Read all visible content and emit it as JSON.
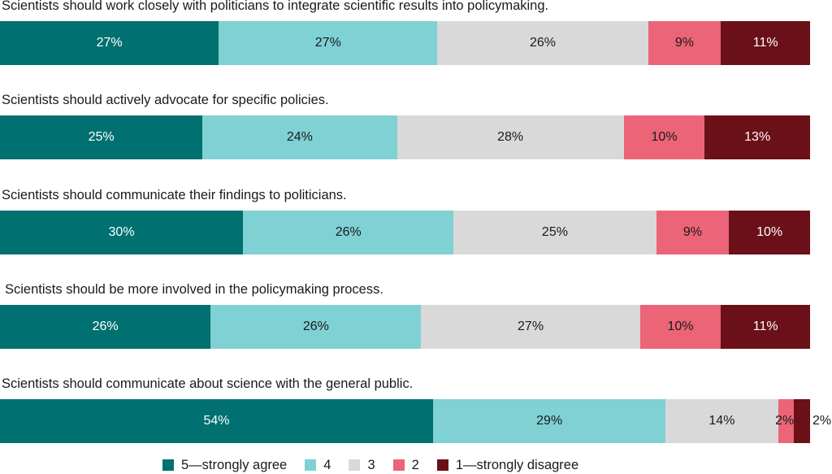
{
  "chart_data": {
    "type": "bar",
    "orientation": "horizontal",
    "stacked": true,
    "categories": [
      "Scientists should work closely with politicians to integrate scientific results into policymaking.",
      "Scientists should actively advocate for specific policies.",
      "Scientists should communicate their findings to politicians.",
      "Scientists should be more involved in the policymaking process.",
      "Scientists should communicate about science with the general public."
    ],
    "series": [
      {
        "name": "5—strongly agree",
        "color": "#007070",
        "text_color": "#ffffff",
        "values": [
          27,
          25,
          30,
          26,
          54
        ],
        "labels": [
          "27%",
          "25%",
          "30%",
          "26%",
          "54%"
        ]
      },
      {
        "name": "4",
        "color": "#7fd1d4",
        "text_color": "#1a1a1a",
        "values": [
          27,
          24,
          26,
          26,
          29
        ],
        "labels": [
          "27%",
          "24%",
          "26%",
          "26%",
          "29%"
        ]
      },
      {
        "name": "3",
        "color": "#d9d9d9",
        "text_color": "#1a1a1a",
        "values": [
          26,
          28,
          25,
          27,
          14
        ],
        "labels": [
          "26%",
          "28%",
          "25%",
          "27%",
          "14%"
        ]
      },
      {
        "name": "2",
        "color": "#eb6478",
        "text_color": "#1a1a1a",
        "values": [
          9,
          10,
          9,
          10,
          2
        ],
        "labels": [
          "9%",
          "10%",
          "9%",
          "10%",
          "2%"
        ]
      },
      {
        "name": "1—strongly disagree",
        "color": "#6b1018",
        "text_color": "#ffffff",
        "values": [
          11,
          13,
          10,
          11,
          2
        ],
        "labels": [
          "11%",
          "13%",
          "10%",
          "11%",
          "2%"
        ]
      }
    ],
    "legend": "bottom",
    "grid": false
  }
}
